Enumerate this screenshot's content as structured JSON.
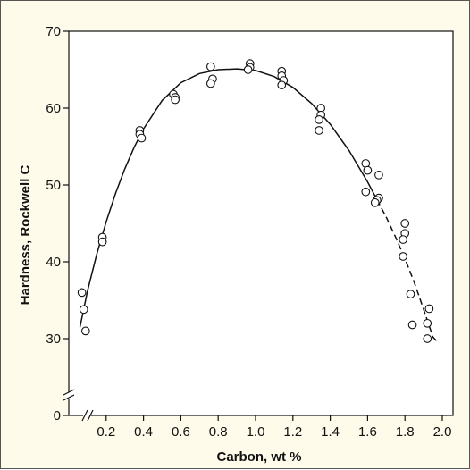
{
  "colors": {
    "background": "#fefbea",
    "plot_background": "#ffffff",
    "ink": "#111111"
  },
  "chart_data": {
    "type": "scatter",
    "title": "",
    "xlabel": "Carbon, wt %",
    "ylabel": "Hardness, Rockwell C",
    "xlim": [
      0,
      2.0
    ],
    "ylim": [
      0,
      70
    ],
    "x_axis_break": true,
    "y_axis_break": true,
    "grid": false,
    "legend": "none",
    "x_ticks": [
      0.2,
      0.4,
      0.6,
      0.8,
      1.0,
      1.2,
      1.4,
      1.6,
      1.8,
      2.0
    ],
    "x_tick_labels": [
      "0.2",
      "0.4",
      "0.6",
      "0.8",
      "1.0",
      "1.2",
      "1.4",
      "1.6",
      "1.8",
      "2.0"
    ],
    "y_ticks": [
      0,
      30,
      40,
      50,
      60,
      70
    ],
    "y_tick_labels": [
      "0",
      "30",
      "40",
      "50",
      "60",
      "70"
    ],
    "points": [
      {
        "x": 0.07,
        "y": 36.0
      },
      {
        "x": 0.08,
        "y": 33.8
      },
      {
        "x": 0.09,
        "y": 31.0
      },
      {
        "x": 0.18,
        "y": 43.2
      },
      {
        "x": 0.18,
        "y": 42.6
      },
      {
        "x": 0.38,
        "y": 57.1
      },
      {
        "x": 0.38,
        "y": 56.6
      },
      {
        "x": 0.39,
        "y": 56.1
      },
      {
        "x": 0.56,
        "y": 61.8
      },
      {
        "x": 0.57,
        "y": 61.4
      },
      {
        "x": 0.57,
        "y": 61.1
      },
      {
        "x": 0.76,
        "y": 65.4
      },
      {
        "x": 0.77,
        "y": 63.8
      },
      {
        "x": 0.76,
        "y": 63.2
      },
      {
        "x": 0.97,
        "y": 65.8
      },
      {
        "x": 0.97,
        "y": 65.3
      },
      {
        "x": 0.96,
        "y": 65.0
      },
      {
        "x": 1.14,
        "y": 64.8
      },
      {
        "x": 1.14,
        "y": 64.2
      },
      {
        "x": 1.15,
        "y": 63.6
      },
      {
        "x": 1.14,
        "y": 63.0
      },
      {
        "x": 1.35,
        "y": 60.0
      },
      {
        "x": 1.35,
        "y": 59.1
      },
      {
        "x": 1.34,
        "y": 58.5
      },
      {
        "x": 1.34,
        "y": 57.1
      },
      {
        "x": 1.59,
        "y": 52.8
      },
      {
        "x": 1.6,
        "y": 51.9
      },
      {
        "x": 1.59,
        "y": 49.1
      },
      {
        "x": 1.66,
        "y": 51.3
      },
      {
        "x": 1.66,
        "y": 48.3
      },
      {
        "x": 1.65,
        "y": 48.0
      },
      {
        "x": 1.64,
        "y": 47.7
      },
      {
        "x": 1.8,
        "y": 45.0
      },
      {
        "x": 1.8,
        "y": 43.7
      },
      {
        "x": 1.79,
        "y": 42.9
      },
      {
        "x": 1.79,
        "y": 40.7
      },
      {
        "x": 1.83,
        "y": 35.8
      },
      {
        "x": 1.84,
        "y": 31.8
      },
      {
        "x": 1.93,
        "y": 33.9
      },
      {
        "x": 1.92,
        "y": 32.0
      },
      {
        "x": 1.92,
        "y": 30.0
      }
    ],
    "fit_curve": {
      "solid": [
        {
          "x": 0.06,
          "y": 31.5
        },
        {
          "x": 0.1,
          "y": 36.2
        },
        {
          "x": 0.15,
          "y": 41.0
        },
        {
          "x": 0.2,
          "y": 45.2
        },
        {
          "x": 0.25,
          "y": 48.9
        },
        {
          "x": 0.3,
          "y": 52.1
        },
        {
          "x": 0.35,
          "y": 54.9
        },
        {
          "x": 0.4,
          "y": 57.3
        },
        {
          "x": 0.5,
          "y": 61.0
        },
        {
          "x": 0.6,
          "y": 63.3
        },
        {
          "x": 0.7,
          "y": 64.5
        },
        {
          "x": 0.8,
          "y": 65.0
        },
        {
          "x": 0.9,
          "y": 65.1
        },
        {
          "x": 1.0,
          "y": 64.9
        },
        {
          "x": 1.1,
          "y": 64.1
        },
        {
          "x": 1.2,
          "y": 62.7
        },
        {
          "x": 1.3,
          "y": 60.6
        },
        {
          "x": 1.4,
          "y": 57.9
        },
        {
          "x": 1.5,
          "y": 54.5
        },
        {
          "x": 1.6,
          "y": 50.4
        },
        {
          "x": 1.65,
          "y": 48.1
        }
      ],
      "dashed": [
        {
          "x": 1.65,
          "y": 48.1
        },
        {
          "x": 1.7,
          "y": 45.8
        },
        {
          "x": 1.75,
          "y": 43.2
        },
        {
          "x": 1.8,
          "y": 40.4
        },
        {
          "x": 1.85,
          "y": 37.3
        },
        {
          "x": 1.9,
          "y": 33.8
        },
        {
          "x": 1.95,
          "y": 30.2
        },
        {
          "x": 1.98,
          "y": 28.3
        }
      ]
    }
  }
}
